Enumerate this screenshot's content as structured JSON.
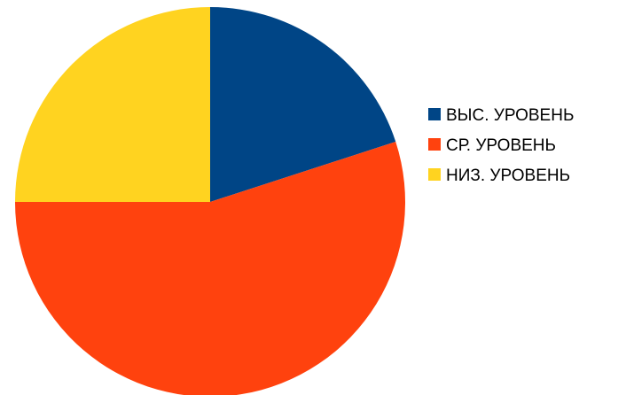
{
  "chart_data": {
    "type": "pie",
    "title": "",
    "slices": [
      {
        "label": "ВЫС. УРОВЕНЬ",
        "value": 20,
        "color": "#004586"
      },
      {
        "label": "СР. УРОВЕНЬ",
        "value": 55,
        "color": "#ff420e"
      },
      {
        "label": "НИЗ. УРОВЕНЬ",
        "value": 25,
        "color": "#ffd320"
      }
    ],
    "start_angle_deg": 0,
    "direction": "clockwise",
    "legend_position": "right"
  }
}
